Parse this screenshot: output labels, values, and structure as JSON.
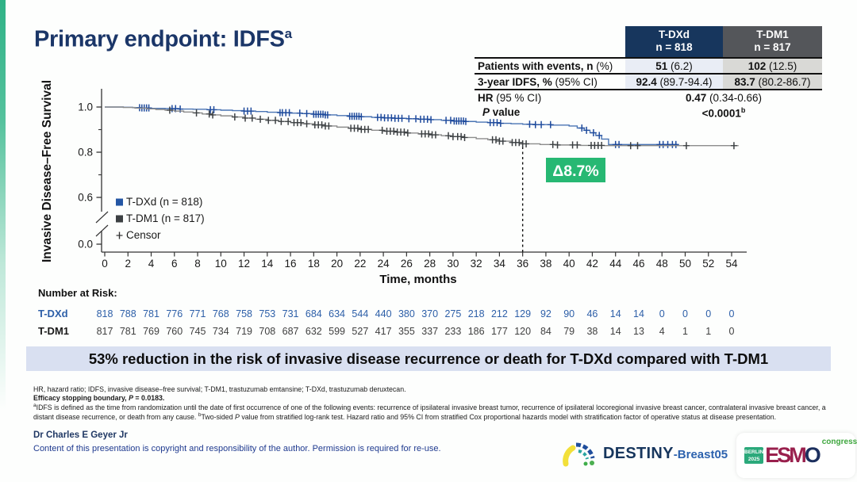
{
  "slide": {
    "title": "Primary endpoint: IDFS",
    "title_sup": "a",
    "accent_green": "#2fb286",
    "title_color": "#1b3668"
  },
  "results_table": {
    "columns": [
      {
        "drug": "T-DXd",
        "n": "n = 818",
        "header_bg": "#17365d",
        "cell_bg": "#e9edf5"
      },
      {
        "drug": "T-DM1",
        "n": "n = 817",
        "header_bg": "#54565a",
        "cell_bg": "#d9d9d6"
      }
    ],
    "rows": [
      {
        "label_bold": "Patients with events, n",
        "label_rest": " (%)",
        "tdxd_bold": "51",
        "tdxd_rest": " (6.2)",
        "tdm1_bold": "102",
        "tdm1_rest": " (12.5)"
      },
      {
        "label_bold": "3-year IDFS, %",
        "label_rest": " (95% CI)",
        "tdxd_bold": "92.4",
        "tdxd_rest": " (89.7-94.4)",
        "tdm1_bold": "83.7",
        "tdm1_rest": " (80.2-86.7)"
      }
    ],
    "hr_label_bold": "HR",
    "hr_label_rest": " (95 % CI)",
    "hr_value_bold": "0.47",
    "hr_value_rest": " (0.34-0.66)",
    "p_label_italic": "P",
    "p_label_rest": " value",
    "p_value": "<0.0001",
    "p_value_sup": "b"
  },
  "chart_data": {
    "type": "line",
    "subtype": "kaplan-meier-step",
    "ylabel": "Invasive Disease–Free Survival",
    "xlabel": "Time, months",
    "x_ticks": [
      0,
      2,
      4,
      6,
      8,
      10,
      12,
      14,
      16,
      18,
      20,
      22,
      24,
      26,
      28,
      30,
      32,
      34,
      36,
      38,
      40,
      42,
      44,
      46,
      48,
      50,
      52,
      54
    ],
    "y_ticks_major": [
      1.0,
      0.8,
      0.6,
      0.0
    ],
    "y_ticks_minor": [
      0.9,
      0.7
    ],
    "axis_break_between": [
      0.0,
      0.6
    ],
    "xlim": [
      0,
      54
    ],
    "grid": "off",
    "reference_line_month": 36,
    "annotation": {
      "text": "Δ8.7%",
      "bg": "#27b873",
      "text_color": "#ffffff"
    },
    "legend": {
      "position": "inside-lower-left",
      "items": [
        {
          "label": "T-DXd (n = 818)",
          "marker": "square",
          "color": "#2456a4"
        },
        {
          "label": "T-DM1 (n = 817)",
          "marker": "square",
          "color": "#3c4043"
        },
        {
          "label": "Censor",
          "marker": "plus",
          "color": "#333333"
        }
      ]
    },
    "series": [
      {
        "name": "T-DXd",
        "line_color": "#4a74b4",
        "censor_color": "#1e4a9c",
        "steps": [
          [
            0,
            1.0
          ],
          [
            1.6,
            0.999
          ],
          [
            2.4,
            0.997
          ],
          [
            3.2,
            0.996
          ],
          [
            4.0,
            0.994
          ],
          [
            5.2,
            0.993
          ],
          [
            6.4,
            0.991
          ],
          [
            7.6,
            0.99
          ],
          [
            8.8,
            0.988
          ],
          [
            10.0,
            0.986
          ],
          [
            11.0,
            0.984
          ],
          [
            12.0,
            0.982
          ],
          [
            13.0,
            0.98
          ],
          [
            14.0,
            0.977
          ],
          [
            15.0,
            0.975
          ],
          [
            16.0,
            0.973
          ],
          [
            17.0,
            0.971
          ],
          [
            18.0,
            0.968
          ],
          [
            19.0,
            0.965
          ],
          [
            20.0,
            0.962
          ],
          [
            21.0,
            0.959
          ],
          [
            22.0,
            0.957
          ],
          [
            23.0,
            0.954
          ],
          [
            24.0,
            0.952
          ],
          [
            25.0,
            0.95
          ],
          [
            26.0,
            0.948
          ],
          [
            27.0,
            0.946
          ],
          [
            28.0,
            0.944
          ],
          [
            29.0,
            0.941
          ],
          [
            30.0,
            0.938
          ],
          [
            31.0,
            0.936
          ],
          [
            32.0,
            0.933
          ],
          [
            33.0,
            0.931
          ],
          [
            34.0,
            0.928
          ],
          [
            35.0,
            0.926
          ],
          [
            36.0,
            0.924
          ],
          [
            37.0,
            0.922
          ],
          [
            38.5,
            0.92
          ],
          [
            40.0,
            0.916
          ],
          [
            40.7,
            0.907
          ],
          [
            41.3,
            0.897
          ],
          [
            41.8,
            0.886
          ],
          [
            42.3,
            0.874
          ],
          [
            42.8,
            0.858
          ],
          [
            43.4,
            0.834
          ]
        ],
        "end_month": 49.4,
        "censors": [
          3.0,
          3.2,
          3.4,
          3.6,
          3.8,
          5.8,
          6.1,
          6.5,
          9.1,
          9.4,
          12.0,
          12.3,
          12.6,
          15.1,
          15.3,
          15.6,
          15.9,
          16.8,
          17.4,
          18.0,
          18.2,
          18.4,
          18.6,
          18.8,
          19.0,
          19.2,
          21.1,
          21.3,
          21.5,
          21.7,
          21.9,
          22.1,
          23.5,
          23.8,
          24.1,
          24.4,
          24.7,
          25.0,
          25.3,
          25.6,
          26.2,
          26.8,
          27.2,
          27.5,
          27.8,
          28.1,
          29.4,
          29.8,
          30.1,
          30.3,
          30.5,
          30.7,
          30.9,
          31.1,
          33.2,
          33.5,
          33.8,
          34.1,
          36.6,
          37.1,
          37.6,
          38.4,
          41.1,
          41.5,
          42.1,
          42.6,
          44.0,
          44.3,
          47.8,
          48.1,
          48.5,
          48.9,
          49.2
        ]
      },
      {
        "name": "T-DM1",
        "line_color": "#8c8c8c",
        "censor_color": "#3c4043",
        "steps": [
          [
            0,
            1.0
          ],
          [
            1.6,
            0.998
          ],
          [
            2.6,
            0.995
          ],
          [
            3.6,
            0.992
          ],
          [
            4.4,
            0.989
          ],
          [
            5.2,
            0.986
          ],
          [
            6.0,
            0.982
          ],
          [
            6.8,
            0.978
          ],
          [
            7.6,
            0.974
          ],
          [
            8.4,
            0.969
          ],
          [
            9.2,
            0.965
          ],
          [
            10.0,
            0.961
          ],
          [
            11.0,
            0.956
          ],
          [
            12.0,
            0.951
          ],
          [
            13.0,
            0.946
          ],
          [
            14.0,
            0.941
          ],
          [
            15.0,
            0.936
          ],
          [
            16.0,
            0.931
          ],
          [
            17.0,
            0.926
          ],
          [
            18.0,
            0.921
          ],
          [
            19.0,
            0.916
          ],
          [
            20.0,
            0.911
          ],
          [
            21.0,
            0.906
          ],
          [
            22.0,
            0.901
          ],
          [
            23.0,
            0.897
          ],
          [
            24.0,
            0.893
          ],
          [
            25.0,
            0.889
          ],
          [
            26.0,
            0.885
          ],
          [
            27.0,
            0.881
          ],
          [
            28.0,
            0.877
          ],
          [
            29.0,
            0.873
          ],
          [
            30.0,
            0.869
          ],
          [
            31.0,
            0.865
          ],
          [
            32.0,
            0.86
          ],
          [
            33.0,
            0.855
          ],
          [
            34.0,
            0.849
          ],
          [
            35.0,
            0.843
          ],
          [
            36.0,
            0.837
          ],
          [
            37.5,
            0.834
          ],
          [
            39.0,
            0.832
          ],
          [
            41.0,
            0.83
          ],
          [
            43.0,
            0.829
          ]
        ],
        "end_month": 54.6,
        "censors": [
          5.6,
          7.9,
          9.0,
          9.3,
          11.2,
          12.1,
          12.7,
          13.4,
          14.1,
          14.7,
          15.2,
          15.8,
          16.3,
          16.6,
          16.9,
          17.4,
          18.1,
          18.4,
          18.7,
          19.0,
          19.3,
          21.2,
          21.5,
          21.8,
          22.1,
          22.4,
          22.7,
          23.9,
          24.3,
          24.6,
          24.9,
          25.2,
          25.5,
          25.8,
          26.1,
          27.3,
          27.6,
          27.9,
          28.2,
          28.5,
          29.6,
          30.0,
          30.4,
          30.7,
          31.0,
          33.4,
          33.7,
          34.0,
          34.3,
          35.1,
          35.4,
          35.7,
          36.0,
          36.3,
          38.6,
          39.0,
          40.3,
          40.7,
          41.9,
          42.2,
          42.5,
          42.8,
          45.3,
          45.9,
          50.1,
          54.2
        ]
      }
    ],
    "key_values": {
      "tdxd_3yr_idfs_pct": 92.4,
      "tdm1_3yr_idfs_pct": 83.7,
      "delta_pct": 8.7,
      "hazard_ratio": 0.47,
      "hr_ci": "0.34-0.66",
      "p_value": "<0.0001"
    },
    "number_at_risk": {
      "title": "Number at Risk:",
      "rows": [
        {
          "label": "T-DXd",
          "color": "#2d5fa8",
          "values": [
            818,
            788,
            781,
            776,
            771,
            768,
            758,
            753,
            731,
            684,
            634,
            544,
            440,
            380,
            370,
            275,
            218,
            212,
            129,
            92,
            90,
            46,
            14,
            14,
            0,
            0,
            0,
            0
          ]
        },
        {
          "label": "T-DM1",
          "color": "#3f3f3f",
          "values": [
            817,
            781,
            769,
            760,
            745,
            734,
            719,
            708,
            687,
            632,
            599,
            527,
            417,
            355,
            337,
            233,
            186,
            177,
            120,
            84,
            79,
            38,
            14,
            13,
            4,
            1,
            1,
            0
          ]
        }
      ]
    }
  },
  "banner": {
    "text": "53% reduction in the risk of invasive disease recurrence or death for T-DXd compared with T-DM1",
    "bg": "#d9e0f1"
  },
  "footnotes": {
    "abbrev": "HR, hazard ratio; IDFS, invasive disease–free survival; T-DM1, trastuzumab emtansine; T-DXd, trastuzumab deruxtecan.",
    "boundary1": "Efficacy stopping boundary, ",
    "boundary_p": "P",
    "boundary2": " = 0.0183.",
    "sup_a": "a",
    "def_a": "IDFS is defined as the time from randomization until the date of first occurrence of one of the following events: recurrence of ipsilateral invasive breast tumor, recurrence of ipsilateral locoregional invasive breast cancer, contralateral invasive breast cancer, a distant disease recurrence, or death from any cause. ",
    "sup_b": "b",
    "b1": "Two-sided ",
    "b_p": "P",
    "b2": " value from stratified log-rank test. Hazard ratio and 95% CI from stratified Cox proportional hazards model with stratification factor of operative status at disease presentation."
  },
  "author": "Dr Charles E Geyer Jr",
  "copyright": "Content of this presentation is copyright and responsibility of the author. Permission is required for re-use.",
  "logos": {
    "destiny": {
      "name": "DESTINY",
      "suffix": "-Breast05"
    },
    "esmo": {
      "location": "BERLIN",
      "year": "2025",
      "name_esm": "ESM",
      "name_o": "O",
      "suffix": "congress"
    }
  }
}
